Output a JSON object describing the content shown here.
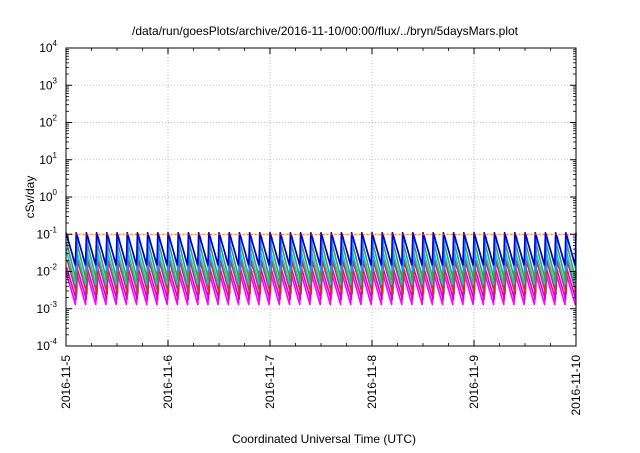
{
  "chart_data": {
    "type": "line",
    "title": "/data/run/goesPlots/archive/2016-11-10/00:00/flux/../bryn/5daysMars.plot",
    "xlabel": "Coordinated Universal Time (UTC)",
    "ylabel": "cSv/day",
    "yscale": "log",
    "ylim": [
      0.0001,
      10000
    ],
    "y_ticks": [
      {
        "base": "10",
        "exp": "-4",
        "value": 0.0001
      },
      {
        "base": "10",
        "exp": "-3",
        "value": 0.001
      },
      {
        "base": "10",
        "exp": "-2",
        "value": 0.01
      },
      {
        "base": "10",
        "exp": "-1",
        "value": 0.1
      },
      {
        "base": "10",
        "exp": "0",
        "value": 1
      },
      {
        "base": "10",
        "exp": "1",
        "value": 10
      },
      {
        "base": "10",
        "exp": "2",
        "value": 100
      },
      {
        "base": "10",
        "exp": "3",
        "value": 1000
      },
      {
        "base": "10",
        "exp": "4",
        "value": 10000
      }
    ],
    "x_ticks": [
      "2016-11-5",
      "2016-11-6",
      "2016-11-7",
      "2016-11-8",
      "2016-11-9",
      "2016-11-10"
    ],
    "xlim": [
      "2016-11-05 00:00",
      "2016-11-10 00:00"
    ],
    "grid": true,
    "legend": "none",
    "cycle_hours": 2.4,
    "series": [
      {
        "color": "#ff00ff",
        "peak": 0.01,
        "trough": 0.0013
      },
      {
        "color": "#d400d4",
        "peak": 0.013,
        "trough": 0.0018
      },
      {
        "color": "#cc3333",
        "peak": 0.02,
        "trough": 0.0025
      },
      {
        "color": "#00ced1",
        "peak": 0.04,
        "trough": 0.0045
      },
      {
        "color": "#4a9a4a",
        "peak": 0.06,
        "trough": 0.006
      },
      {
        "color": "#1e90ff",
        "peak": 0.09,
        "trough": 0.01
      },
      {
        "color": "#0000cd",
        "peak": 0.11,
        "trough": 0.015
      },
      {
        "color": "#ff4500",
        "peak": 0.1,
        "trough": 0.1
      }
    ]
  }
}
